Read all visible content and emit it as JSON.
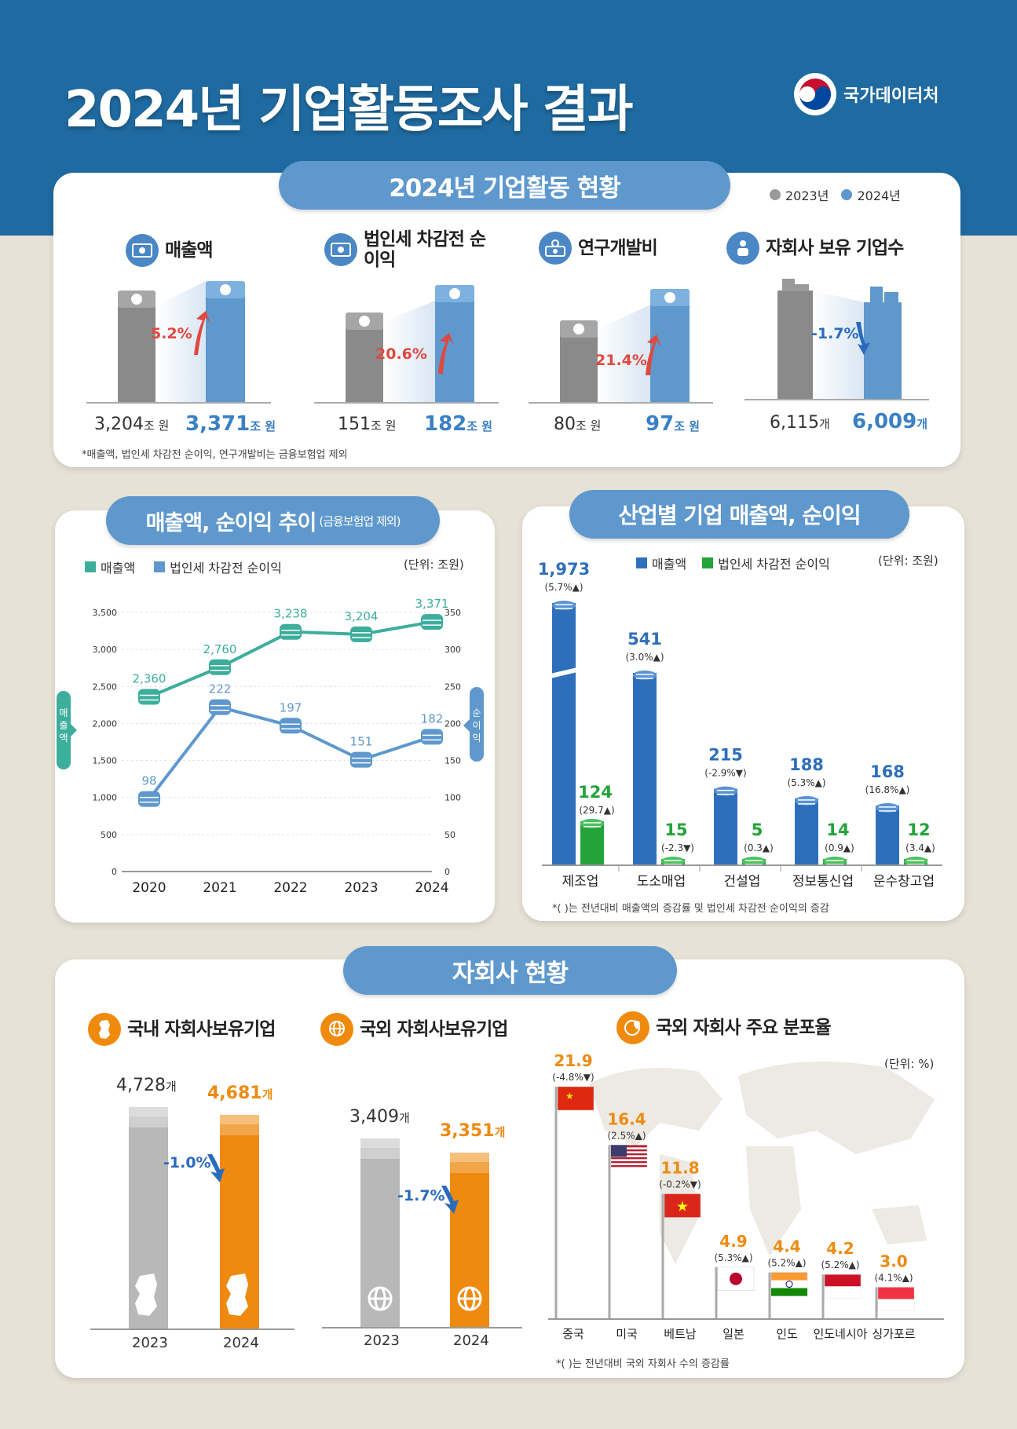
{
  "header": {
    "title": "2024년 기업활동조사 결과",
    "logo_text": "국가데이터처"
  },
  "top": {
    "title": "2024년 기업활동 현황",
    "legend": [
      "2023년",
      "2024년"
    ],
    "note": "*매출액, 법인세 차감전 순이익, 연구개발비는 금융보험업 제외",
    "items": [
      {
        "title": "매출액",
        "change": "5.2%",
        "direction": "up",
        "v2023": "3,204",
        "v2024": "3,371",
        "unit": "조 원"
      },
      {
        "title": "법인세 차감전 순이익",
        "change": "20.6%",
        "direction": "up",
        "v2023": "151",
        "v2024": "182",
        "unit": "조 원"
      },
      {
        "title": "연구개발비",
        "change": "21.4%",
        "direction": "up",
        "v2023": "80",
        "v2024": "97",
        "unit": "조 원"
      },
      {
        "title": "자회사 보유 기업수",
        "change": "-1.7%",
        "direction": "down",
        "v2023": "6,115",
        "v2024": "6,009",
        "unit": "개"
      }
    ]
  },
  "trend": {
    "title": "매출액, 순이익 추이",
    "title_note": "(금융보험업 제외)",
    "unit_label": "(단위: 조원)",
    "left_axis_label": "매출액",
    "right_axis_label": "순이익",
    "colors": {
      "sales": "#3dae9c",
      "profit": "#5e98cd"
    }
  },
  "industry": {
    "title": "산업별 기업 매출액, 순이익",
    "unit_label": "(단위: 조원)",
    "note": "*( )는 전년대비 매출액의 증감률 및 법인세 차감전 순이익의 증감",
    "colors": {
      "sales": "#2e6fbb",
      "profit": "#23a33a"
    }
  },
  "sub": {
    "title": "자회사 현황",
    "domestic_title": "국내 자회사보유기업",
    "foreign_title": "국외 자회사보유기업",
    "dist_title": "국외 자회사 주요 분포율",
    "unit_label": "(단위: %)",
    "note": "*( )는 전년대비 국외 자회사 수의 증감률",
    "domestic": {
      "v2023": "4,728",
      "v2024": "4,681",
      "unit": "개",
      "change": "-1.0%",
      "years": [
        "2023",
        "2024"
      ]
    },
    "foreign": {
      "v2023": "3,409",
      "v2024": "3,351",
      "unit": "개",
      "change": "-1.7%",
      "years": [
        "2023",
        "2024"
      ]
    }
  },
  "chart_data": [
    {
      "type": "line",
      "x": [
        "2020",
        "2021",
        "2022",
        "2023",
        "2024"
      ],
      "series": [
        {
          "name": "매출액",
          "axis": "left",
          "values": [
            2360,
            2760,
            3238,
            3204,
            3371
          ],
          "labels": [
            "2,360",
            "2,760",
            "3,238",
            "3,204",
            "3,371"
          ]
        },
        {
          "name": "법인세 차감전 순이익",
          "axis": "right",
          "values": [
            98,
            222,
            197,
            151,
            182
          ],
          "labels": [
            "98",
            "222",
            "197",
            "151",
            "182"
          ]
        }
      ],
      "ylim_left": [
        0,
        3500
      ],
      "ylim_right": [
        0,
        350
      ],
      "left_ticks": [
        "0",
        "500",
        "1,000",
        "1,500",
        "2,000",
        "2,500",
        "3,000",
        "3,500"
      ],
      "right_ticks": [
        "0",
        "50",
        "100",
        "150",
        "200",
        "250",
        "300",
        "350"
      ]
    },
    {
      "type": "bar",
      "categories": [
        "제조업",
        "도소매업",
        "건설업",
        "정보통신업",
        "운수창고업"
      ],
      "series": [
        {
          "name": "매출액",
          "values": [
            1973,
            541,
            215,
            188,
            168
          ],
          "labels": [
            "1,973",
            "541",
            "215",
            "188",
            "168"
          ],
          "changes": [
            "(5.7%",
            "(3.0%",
            "(-2.9%",
            "(5.3%",
            "(16.8%"
          ],
          "dirs": [
            "up",
            "up",
            "down",
            "up",
            "up"
          ]
        },
        {
          "name": "법인세 차감전 순이익",
          "values": [
            124,
            15,
            5,
            14,
            12
          ],
          "labels": [
            "124",
            "15",
            "5",
            "14",
            "12"
          ],
          "changes": [
            "(29.7",
            "(-2.3",
            "(0.3",
            "(0.9",
            "(3.4"
          ],
          "dirs": [
            "up",
            "down",
            "up",
            "up",
            "up"
          ]
        }
      ]
    },
    {
      "type": "bar",
      "categories": [
        "중국",
        "미국",
        "베트남",
        "일본",
        "인도",
        "인도네시아",
        "싱가포르"
      ],
      "values": [
        21.9,
        16.4,
        11.8,
        4.9,
        4.4,
        4.2,
        3.0
      ],
      "labels": [
        "21.9",
        "16.4",
        "11.8",
        "4.9",
        "4.4",
        "4.2",
        "3.0"
      ],
      "changes": [
        "(-4.8%",
        "(2.5%",
        "(-0.2%",
        "(5.3%",
        "(5.2%",
        "(5.2%",
        "(4.1%"
      ],
      "dirs": [
        "down",
        "up",
        "down",
        "up",
        "up",
        "up",
        "up"
      ]
    }
  ]
}
